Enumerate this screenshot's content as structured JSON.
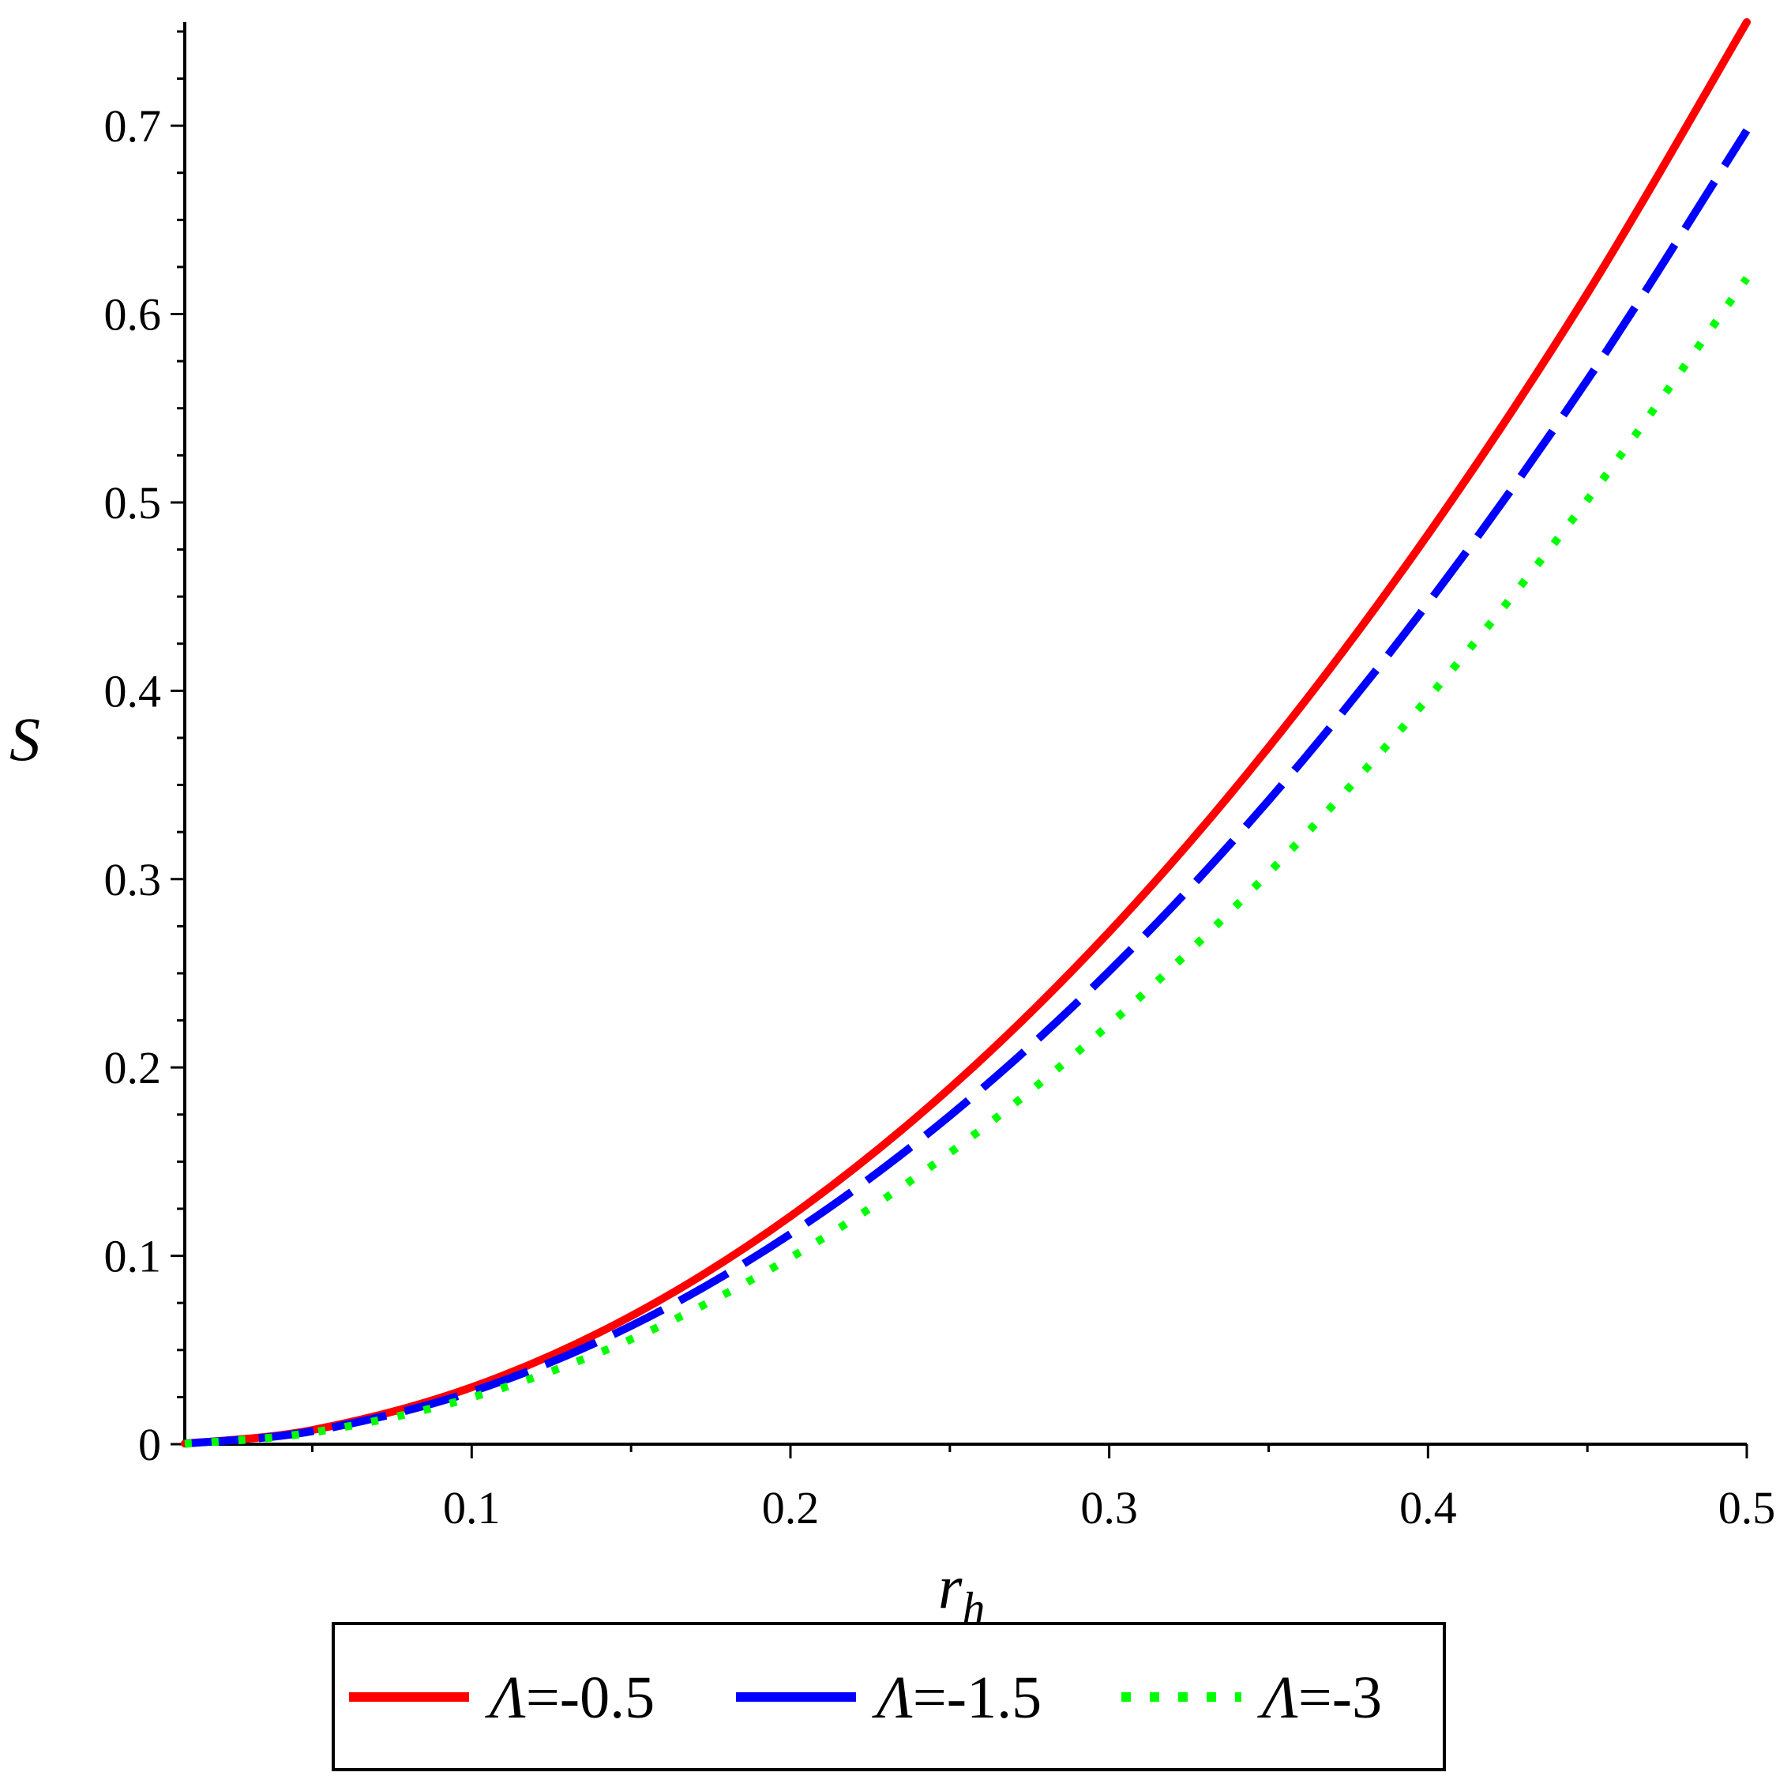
{
  "chart_data": {
    "type": "line",
    "xlabel": "r",
    "xlabel_sub": "h",
    "ylabel": "S",
    "xlim": [
      0.01,
      0.5
    ],
    "ylim": [
      0,
      0.755
    ],
    "x_ticks": [
      "0.1",
      "0.2",
      "0.3",
      "0.4",
      "0.5"
    ],
    "x_tick_values": [
      0.1,
      0.2,
      0.3,
      0.4,
      0.5
    ],
    "y_ticks": [
      "0",
      "0.1",
      "0.2",
      "0.3",
      "0.4",
      "0.5",
      "0.6",
      "0.7"
    ],
    "y_tick_values": [
      0,
      0.1,
      0.2,
      0.3,
      0.4,
      0.5,
      0.6,
      0.7
    ],
    "grid": false,
    "legend_position": "bottom",
    "x": [
      0.01,
      0.05,
      0.1,
      0.15,
      0.2,
      0.25,
      0.3,
      0.35,
      0.4,
      0.45,
      0.5
    ],
    "series": [
      {
        "name": "Λ=-0.5",
        "symbol": "Λ",
        "value_text": "=-0.5",
        "color": "#ff0000",
        "style": "solid",
        "values": [
          0.0003,
          0.0075,
          0.0302,
          0.068,
          0.121,
          0.189,
          0.272,
          0.37,
          0.483,
          0.611,
          0.755
        ]
      },
      {
        "name": "Λ=-1.5",
        "symbol": "Λ",
        "value_text": "=-1.5",
        "color": "#0000ff",
        "style": "dash",
        "values": [
          0.0003,
          0.0069,
          0.0279,
          0.0628,
          0.1116,
          0.1744,
          0.2511,
          0.3418,
          0.4465,
          0.565,
          0.6975
        ]
      },
      {
        "name": "Λ=-3",
        "symbol": "Λ",
        "value_text": "=-3",
        "color": "#00ff00",
        "style": "dot",
        "values": [
          0.0002,
          0.0062,
          0.0248,
          0.0557,
          0.099,
          0.1547,
          0.2228,
          0.3033,
          0.3961,
          0.5013,
          0.619
        ]
      }
    ]
  }
}
